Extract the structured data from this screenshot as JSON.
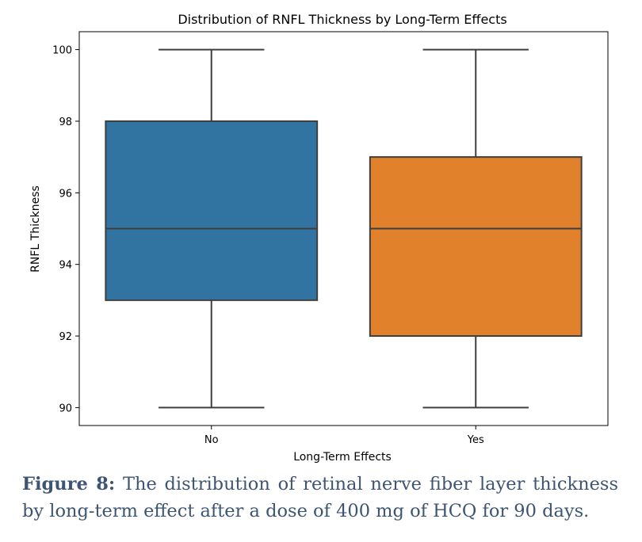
{
  "chart_data": {
    "type": "boxplot",
    "title": "Distribution of RNFL Thickness by Long-Term Effects",
    "xlabel": "Long-Term Effects",
    "ylabel": "RNFL Thickness",
    "categories": [
      "No",
      "Yes"
    ],
    "ylim": [
      89.5,
      100.5
    ],
    "yticks": [
      90,
      92,
      94,
      96,
      98,
      100
    ],
    "boxes": [
      {
        "category": "No",
        "min": 90,
        "q1": 93,
        "median": 95,
        "q3": 98,
        "max": 100,
        "color": "#3274a1"
      },
      {
        "category": "Yes",
        "min": 90,
        "q1": 92,
        "median": 95,
        "q3": 97,
        "max": 100,
        "color": "#e1812c"
      }
    ],
    "grid": false
  },
  "caption": {
    "label": "Figure 8:",
    "text": "The distribution of retinal nerve fiber layer thickness by long-term effect after a dose of 400 mg of HCQ for 90 days."
  }
}
